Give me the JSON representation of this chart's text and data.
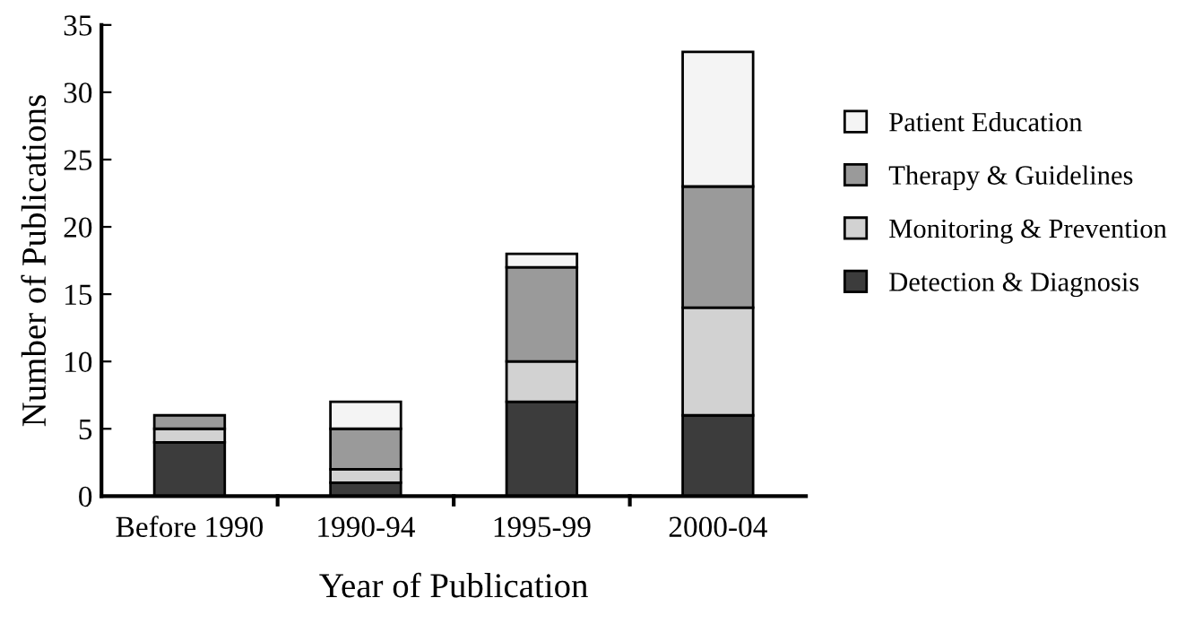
{
  "chart_data": {
    "type": "bar",
    "stacked": true,
    "xlabel": "Year of Publication",
    "ylabel": "Number of Publications",
    "categories": [
      "Before 1990",
      "1990-94",
      "1995-99",
      "2000-04"
    ],
    "series": [
      {
        "name": "Detection & Diagnosis",
        "color": "#3c3c3c",
        "values": [
          4,
          1,
          7,
          6
        ]
      },
      {
        "name": "Monitoring & Prevention",
        "color": "#d2d2d2",
        "values": [
          1,
          1,
          3,
          8
        ]
      },
      {
        "name": "Therapy & Guidelines",
        "color": "#9a9a9a",
        "values": [
          1,
          3,
          7,
          9
        ]
      },
      {
        "name": "Patient Education",
        "color": "#f4f4f4",
        "values": [
          0,
          2,
          1,
          10
        ]
      }
    ],
    "ylim": [
      0,
      35
    ],
    "yticks": [
      0,
      5,
      10,
      15,
      20,
      25,
      30,
      35
    ],
    "grid": false,
    "legend": "right"
  }
}
